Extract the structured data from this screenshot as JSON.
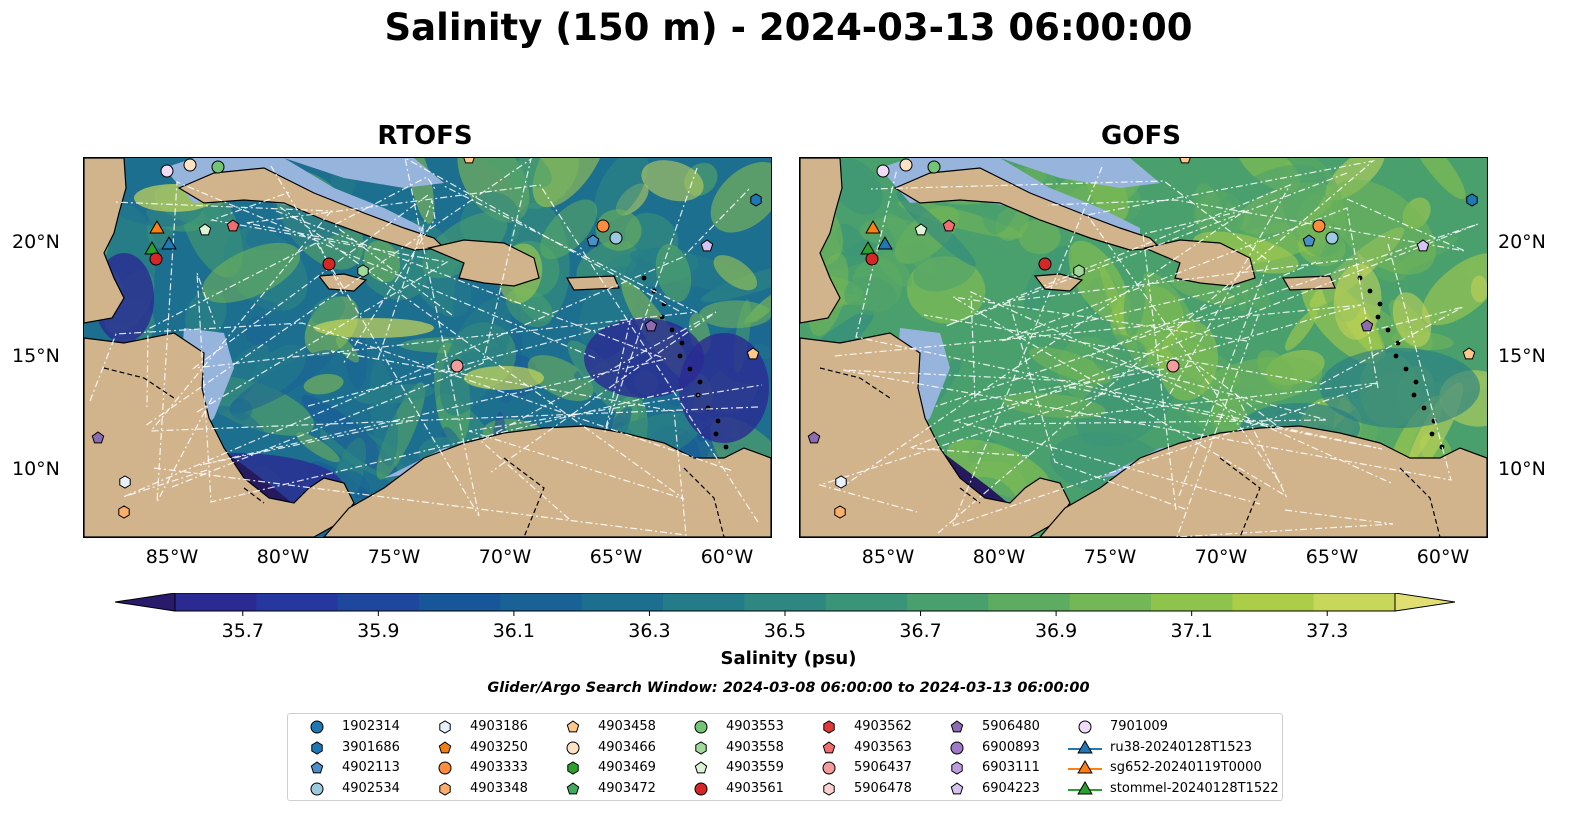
{
  "title": "Salinity (150 m) - 2024-03-13 06:00:00",
  "panels": [
    {
      "title": "RTOFS"
    },
    {
      "title": "GOFS"
    }
  ],
  "axes": {
    "lon_labels": [
      "85°W",
      "80°W",
      "75°W",
      "70°W",
      "65°W",
      "60°W"
    ],
    "lat_labels": [
      "20°N",
      "15°N",
      "10°N"
    ]
  },
  "colorbar": {
    "label": "Salinity (psu)",
    "ticks": [
      "35.7",
      "35.9",
      "36.1",
      "36.3",
      "36.5",
      "36.7",
      "36.9",
      "37.1",
      "37.3"
    ],
    "min": 35.6,
    "max": 37.4,
    "colormap": "haline",
    "colors": [
      "#2a1a6b",
      "#2b2a93",
      "#26389f",
      "#1e479d",
      "#18569a",
      "#196295",
      "#1d6f8f",
      "#247b89",
      "#2e8781",
      "#3a9478",
      "#4aa06d",
      "#5dac62",
      "#74b756",
      "#8ec34c",
      "#abcd48",
      "#c8d65a",
      "#e1df72"
    ]
  },
  "search_window": "Glider/Argo Search Window: 2024-03-08 06:00:00 to 2024-03-13 06:00:00",
  "legend": {
    "items": [
      {
        "label": "1902314",
        "marker": "circle",
        "color": "#1f77b4"
      },
      {
        "label": "3901686",
        "marker": "hexagon",
        "color": "#1f77b4"
      },
      {
        "label": "4902113",
        "marker": "pentagon",
        "color": "#4a90c8"
      },
      {
        "label": "4902534",
        "marker": "circle",
        "color": "#9ecae1"
      },
      {
        "label": "4903186",
        "marker": "hexagon",
        "color": "#e7f2fb"
      },
      {
        "label": "4903250",
        "marker": "pentagon",
        "color": "#f07f16"
      },
      {
        "label": "4903333",
        "marker": "circle",
        "color": "#fd8d3c"
      },
      {
        "label": "4903348",
        "marker": "hexagon",
        "color": "#fdae6b"
      },
      {
        "label": "4903458",
        "marker": "pentagon",
        "color": "#fdc88a"
      },
      {
        "label": "4903466",
        "marker": "circle",
        "color": "#fde2c4"
      },
      {
        "label": "4903469",
        "marker": "hexagon",
        "color": "#2ca02c"
      },
      {
        "label": "4903472",
        "marker": "pentagon",
        "color": "#41ab5d"
      },
      {
        "label": "4903553",
        "marker": "circle",
        "color": "#74c476"
      },
      {
        "label": "4903558",
        "marker": "hexagon",
        "color": "#a1d99b"
      },
      {
        "label": "4903559",
        "marker": "pentagon",
        "color": "#dcf3d6"
      },
      {
        "label": "4903561",
        "marker": "circle",
        "color": "#d62728"
      },
      {
        "label": "4903562",
        "marker": "hexagon",
        "color": "#e0393a"
      },
      {
        "label": "4903563",
        "marker": "pentagon",
        "color": "#f46d6e"
      },
      {
        "label": "5906437",
        "marker": "circle",
        "color": "#f49b9b"
      },
      {
        "label": "5906478",
        "marker": "hexagon",
        "color": "#fcd0cf"
      },
      {
        "label": "5906480",
        "marker": "pentagon",
        "color": "#8c6bb1"
      },
      {
        "label": "6900893",
        "marker": "circle",
        "color": "#9e7ac8"
      },
      {
        "label": "6903111",
        "marker": "hexagon",
        "color": "#bc9ee0"
      },
      {
        "label": "6904223",
        "marker": "pentagon",
        "color": "#d7c3f2"
      },
      {
        "label": "7901009",
        "marker": "circle",
        "color": "#f1dcf7"
      },
      {
        "label": "ru38-20240128T1523",
        "marker": "triangle-line",
        "color": "#1f77b4"
      },
      {
        "label": "sg652-20240119T0000",
        "marker": "triangle-line",
        "color": "#ff7f0e"
      },
      {
        "label": "stommel-20240128T1522",
        "marker": "triangle-line",
        "color": "#2ca02c"
      }
    ]
  }
}
